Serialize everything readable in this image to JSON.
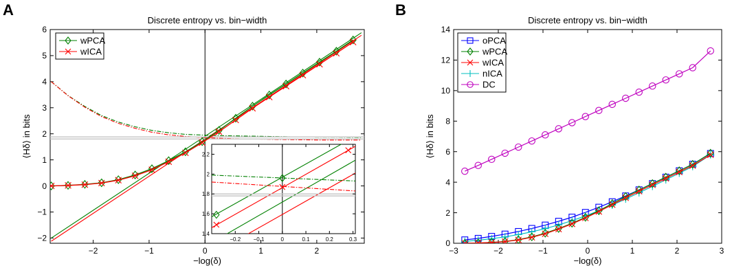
{
  "panels": [
    {
      "letter": "A"
    },
    {
      "letter": "B"
    }
  ],
  "chart_data": [
    {
      "type": "line",
      "title": "Discrete entropy vs. bin−width",
      "xlabel": "−log(δ)",
      "ylabel": "⟨Hδ⟩ in bits",
      "xlim": [
        -2.77,
        2.85
      ],
      "ylim": [
        -2.2,
        6
      ],
      "xticks": [
        -2,
        -1,
        0,
        1,
        2
      ],
      "yticks": [
        -2,
        -1,
        0,
        1,
        2,
        3,
        4,
        5,
        6
      ],
      "x_tick_labels": [
        "−2",
        "−1",
        "0",
        "1",
        "2"
      ],
      "y_tick_labels": [
        "−2",
        "−1",
        "0",
        "1",
        "2",
        "3",
        "4",
        "5",
        "6"
      ],
      "grid": false,
      "legend_position": "top-left",
      "vertical_line_x": 0,
      "legend": [
        {
          "name": "wPCA",
          "color": "#008000",
          "marker": "diamond"
        },
        {
          "name": "wICA",
          "color": "#ff0000",
          "marker": "x"
        }
      ],
      "series": [
        {
          "name": "wPCA",
          "color": "#008000",
          "marker": "diamond",
          "x": [
            -2.75,
            -2.45,
            -2.15,
            -1.85,
            -1.55,
            -1.25,
            -0.95,
            -0.65,
            -0.35,
            -0.05,
            0.25,
            0.55,
            0.85,
            1.15,
            1.45,
            1.75,
            2.05,
            2.35,
            2.65
          ],
          "y": [
            0.0,
            0.02,
            0.06,
            0.12,
            0.24,
            0.42,
            0.66,
            0.97,
            1.31,
            1.7,
            2.13,
            2.6,
            3.06,
            3.49,
            3.91,
            4.33,
            4.75,
            5.17,
            5.6
          ]
        },
        {
          "name": "wICA",
          "color": "#ff0000",
          "marker": "x",
          "x": [
            -2.75,
            -2.45,
            -2.15,
            -1.85,
            -1.55,
            -1.25,
            -0.95,
            -0.65,
            -0.35,
            -0.05,
            0.25,
            0.55,
            0.85,
            1.15,
            1.45,
            1.75,
            2.05,
            2.35,
            2.65
          ],
          "y": [
            0.0,
            0.02,
            0.05,
            0.11,
            0.22,
            0.39,
            0.62,
            0.93,
            1.27,
            1.66,
            2.08,
            2.53,
            2.98,
            3.41,
            3.83,
            4.25,
            4.67,
            5.09,
            5.52
          ]
        }
      ],
      "reference_lines": [
        {
          "kind": "asymptote",
          "color": "#008000",
          "style": "solid",
          "x": [
            -2.75,
            2.8
          ],
          "y": [
            -2.0,
            5.88
          ]
        },
        {
          "kind": "asymptote",
          "color": "#ff0000",
          "style": "solid",
          "x": [
            -2.75,
            2.8
          ],
          "y": [
            -2.12,
            5.78
          ]
        },
        {
          "kind": "entropy-difference",
          "color": "#008000",
          "style": "dashdot",
          "x": [
            -2.75,
            -2.45,
            -2.15,
            -1.85,
            -1.55,
            -1.25,
            -0.95,
            -0.65,
            -0.35,
            -0.05,
            0.25,
            0.55,
            0.85,
            1.15,
            1.45,
            1.75,
            2.05,
            2.35,
            2.8
          ],
          "y": [
            4.0,
            3.47,
            3.05,
            2.7,
            2.45,
            2.27,
            2.13,
            2.04,
            1.98,
            1.95,
            1.93,
            1.92,
            1.91,
            1.9,
            1.89,
            1.88,
            1.87,
            1.87,
            1.86
          ]
        },
        {
          "kind": "entropy-difference",
          "color": "#ff0000",
          "style": "dashdot",
          "x": [
            -2.75,
            -2.45,
            -2.15,
            -1.85,
            -1.55,
            -1.25,
            -0.95,
            -0.65,
            -0.35,
            -0.05,
            0.25,
            0.55,
            0.85,
            1.15,
            1.45,
            1.75,
            2.05,
            2.35,
            2.8
          ],
          "y": [
            4.0,
            3.46,
            3.02,
            2.66,
            2.4,
            2.21,
            2.06,
            1.96,
            1.9,
            1.86,
            1.83,
            1.81,
            1.8,
            1.79,
            1.78,
            1.77,
            1.76,
            1.76,
            1.76
          ]
        },
        {
          "kind": "limit",
          "color": "#c8c8c8",
          "style": "solid",
          "x": [
            -2.77,
            2.85
          ],
          "y": [
            1.8,
            1.8
          ]
        },
        {
          "kind": "limit",
          "color": "#c8c8c8",
          "style": "solid",
          "x": [
            -2.77,
            2.85
          ],
          "y": [
            1.88,
            1.88
          ]
        }
      ],
      "inset": {
        "xlim": [
          -0.3,
          0.31
        ],
        "ylim": [
          1.4,
          2.3
        ],
        "xticks": [
          -0.2,
          -0.1,
          0,
          0.1,
          0.2,
          0.3
        ],
        "yticks": [
          1.4,
          1.6,
          1.8,
          2.0,
          2.2
        ],
        "x_tick_labels": [
          "−0.2",
          "−0.1",
          "0",
          "0.1",
          "0.2",
          "0.3"
        ],
        "y_tick_labels": [
          "1.4",
          "1.6",
          "1.8",
          "2",
          "2.2"
        ],
        "lines": [
          {
            "color": "#008000",
            "style": "solid",
            "x": [
              -0.3,
              0.31
            ],
            "y": [
              1.57,
              2.38
            ]
          },
          {
            "color": "#ff0000",
            "style": "solid",
            "x": [
              -0.3,
              0.31
            ],
            "y": [
              1.46,
              2.28
            ]
          },
          {
            "color": "#008000",
            "style": "solid",
            "x": [
              -0.3,
              0.31
            ],
            "y": [
              1.31,
              2.14
            ]
          },
          {
            "color": "#ff0000",
            "style": "solid",
            "x": [
              -0.3,
              0.31
            ],
            "y": [
              1.19,
              2.01
            ]
          },
          {
            "color": "#008000",
            "style": "dashdot",
            "x": [
              -0.3,
              0.31
            ],
            "y": [
              1.99,
              1.93
            ]
          },
          {
            "color": "#ff0000",
            "style": "dashdot",
            "x": [
              -0.3,
              0.31
            ],
            "y": [
              1.92,
              1.83
            ]
          },
          {
            "color": "#c8c8c8",
            "style": "solid",
            "x": [
              -0.3,
              0.31
            ],
            "y": [
              1.8,
              1.8
            ]
          },
          {
            "color": "#c8c8c8",
            "style": "solid",
            "x": [
              -0.3,
              0.31
            ],
            "y": [
              1.78,
              1.78
            ]
          }
        ],
        "markers": [
          {
            "color": "#008000",
            "marker": "diamond",
            "x": [
              -0.28,
              0.0
            ],
            "y": [
              1.59,
              1.96
            ]
          },
          {
            "color": "#ff0000",
            "marker": "x",
            "x": [
              -0.28,
              0.0,
              0.28
            ],
            "y": [
              1.49,
              1.87,
              2.24
            ]
          }
        ]
      }
    },
    {
      "type": "line",
      "title": "Discrete entropy vs. bin−width",
      "xlabel": "−log(δ)",
      "ylabel": "⟨Hδ⟩ in bits",
      "xlim": [
        -3,
        3
      ],
      "ylim": [
        0,
        14
      ],
      "xticks": [
        -3,
        -2,
        -1,
        0,
        1,
        2,
        3
      ],
      "yticks": [
        0,
        2,
        4,
        6,
        8,
        10,
        12,
        14
      ],
      "x_tick_labels": [
        "−3",
        "−2",
        "−1",
        "0",
        "1",
        "2",
        "3"
      ],
      "y_tick_labels": [
        "0",
        "2",
        "4",
        "6",
        "8",
        "10",
        "12",
        "14"
      ],
      "grid": false,
      "legend_position": "top-left",
      "legend": [
        {
          "name": "oPCA",
          "color": "#0000ff",
          "marker": "square"
        },
        {
          "name": "wPCA",
          "color": "#008000",
          "marker": "diamond"
        },
        {
          "name": "wICA",
          "color": "#ff0000",
          "marker": "x"
        },
        {
          "name": "nICA",
          "color": "#00bfbf",
          "marker": "plus"
        },
        {
          "name": "DC",
          "color": "#bf00bf",
          "marker": "circle"
        }
      ],
      "series": [
        {
          "name": "DC",
          "color": "#bf00bf",
          "marker": "circle",
          "x": [
            -2.75,
            -2.45,
            -2.15,
            -1.85,
            -1.55,
            -1.25,
            -0.95,
            -0.65,
            -0.35,
            -0.05,
            0.25,
            0.55,
            0.85,
            1.15,
            1.45,
            1.75,
            2.05,
            2.35,
            2.75
          ],
          "y": [
            4.72,
            5.1,
            5.5,
            5.9,
            6.3,
            6.7,
            7.1,
            7.5,
            7.9,
            8.3,
            8.7,
            9.1,
            9.5,
            9.9,
            10.3,
            10.7,
            11.1,
            11.5,
            12.6
          ]
        },
        {
          "name": "oPCA",
          "color": "#0000ff",
          "marker": "square",
          "x": [
            -2.75,
            -2.45,
            -2.15,
            -1.85,
            -1.55,
            -1.25,
            -0.95,
            -0.65,
            -0.35,
            -0.05,
            0.25,
            0.55,
            0.85,
            1.15,
            1.45,
            1.75,
            2.05,
            2.35,
            2.75
          ],
          "y": [
            0.22,
            0.32,
            0.45,
            0.6,
            0.77,
            0.97,
            1.19,
            1.44,
            1.71,
            2.02,
            2.36,
            2.72,
            3.1,
            3.5,
            3.91,
            4.33,
            4.75,
            5.18,
            5.88
          ]
        },
        {
          "name": "nICA",
          "color": "#00bfbf",
          "marker": "plus",
          "x": [
            -2.75,
            -2.45,
            -2.15,
            -1.85,
            -1.55,
            -1.25,
            -0.95,
            -0.65,
            -0.35,
            -0.05,
            0.25,
            0.55,
            0.85,
            1.15,
            1.45,
            1.75,
            2.05,
            2.35,
            2.75
          ],
          "y": [
            0.12,
            0.2,
            0.3,
            0.42,
            0.57,
            0.75,
            0.96,
            1.2,
            1.48,
            1.79,
            2.13,
            2.5,
            2.9,
            3.31,
            3.73,
            4.16,
            4.59,
            5.03,
            5.8
          ]
        },
        {
          "name": "wPCA",
          "color": "#008000",
          "marker": "diamond",
          "x": [
            -2.75,
            -2.45,
            -2.15,
            -1.85,
            -1.55,
            -1.25,
            -0.95,
            -0.65,
            -0.35,
            -0.05,
            0.25,
            0.55,
            0.85,
            1.15,
            1.45,
            1.75,
            2.05,
            2.35,
            2.75
          ],
          "y": [
            0.0,
            0.02,
            0.06,
            0.12,
            0.24,
            0.42,
            0.66,
            0.97,
            1.31,
            1.7,
            2.13,
            2.6,
            3.06,
            3.49,
            3.91,
            4.33,
            4.75,
            5.17,
            5.9
          ]
        },
        {
          "name": "wICA",
          "color": "#ff0000",
          "marker": "x",
          "x": [
            -2.75,
            -2.45,
            -2.15,
            -1.85,
            -1.55,
            -1.25,
            -0.95,
            -0.65,
            -0.35,
            -0.05,
            0.25,
            0.55,
            0.85,
            1.15,
            1.45,
            1.75,
            2.05,
            2.35,
            2.75
          ],
          "y": [
            0.0,
            0.02,
            0.05,
            0.11,
            0.22,
            0.39,
            0.62,
            0.93,
            1.27,
            1.66,
            2.08,
            2.53,
            2.98,
            3.41,
            3.83,
            4.25,
            4.67,
            5.09,
            5.8
          ]
        }
      ]
    }
  ]
}
